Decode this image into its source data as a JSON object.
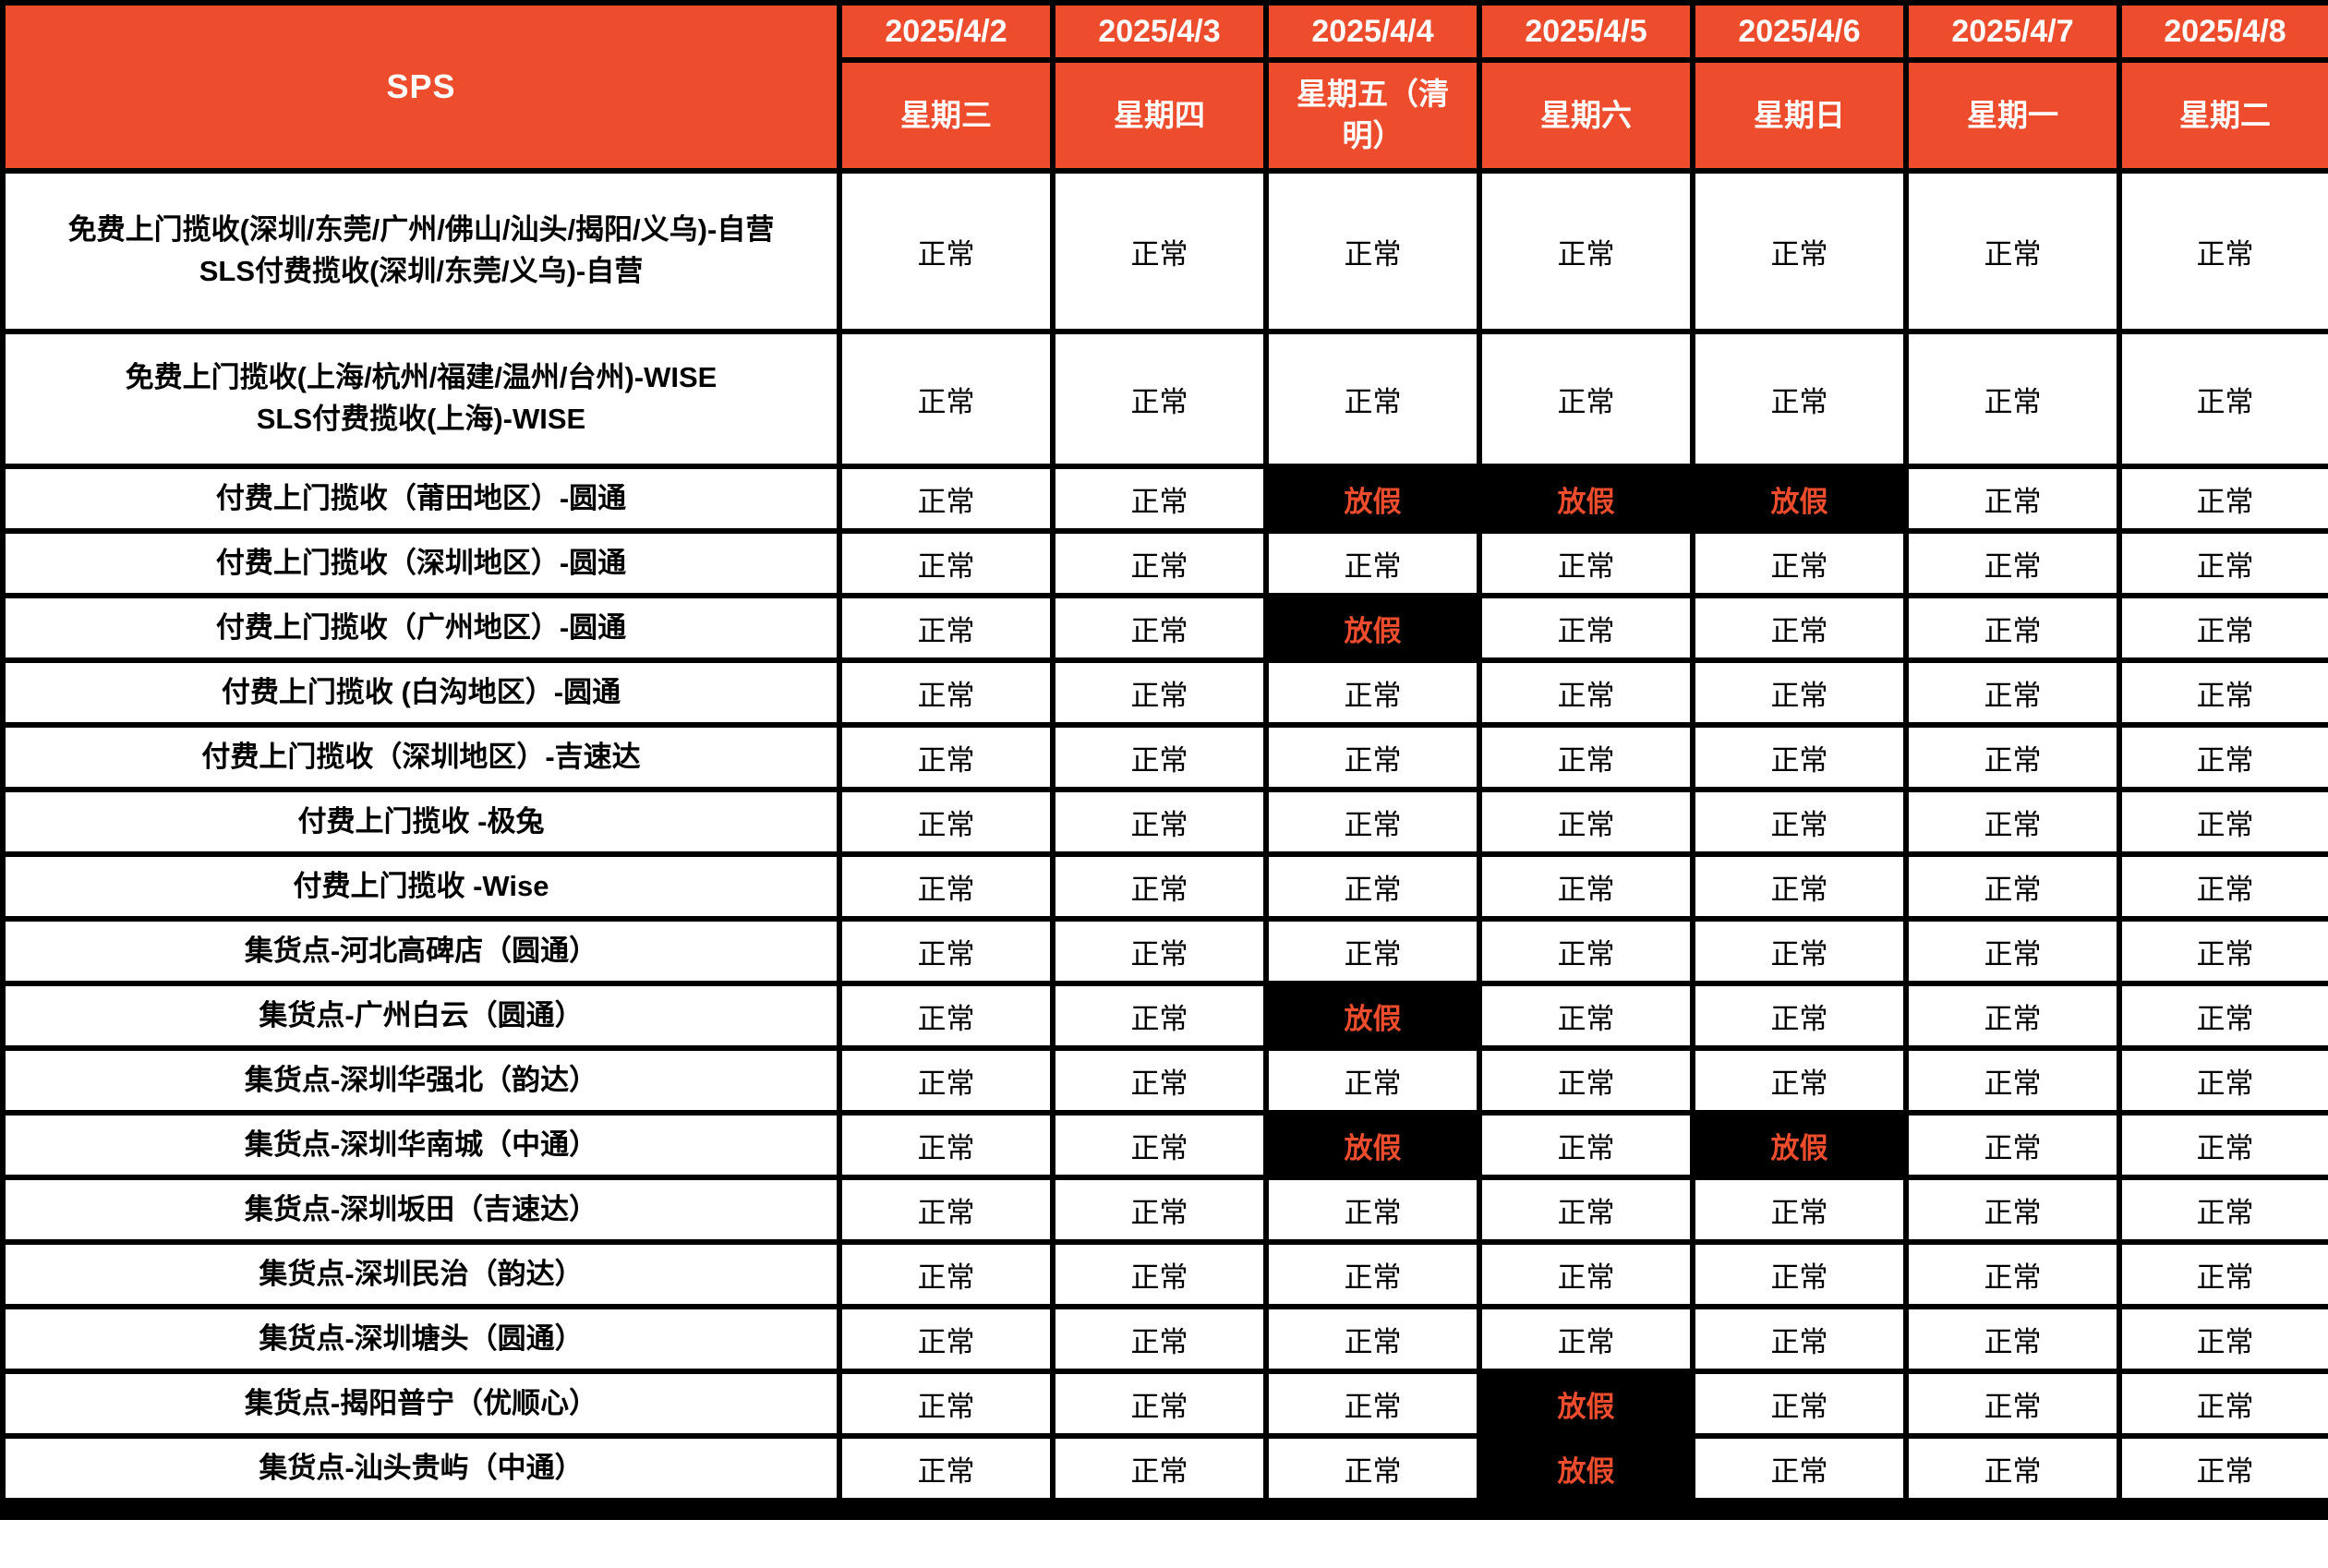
{
  "colors": {
    "accent": "#EE4D2D",
    "grid": "#000000",
    "cell_bg": "#FFFFFF",
    "header_text": "#FFFFFF",
    "body_text": "#000000",
    "holiday_bg": "#000000",
    "holiday_text": "#EE4D2D"
  },
  "table": {
    "corner_label": "SPS",
    "normal_label": "正常",
    "holiday_label": "放假",
    "columns": [
      {
        "date": "2025/4/2",
        "weekday": "星期三"
      },
      {
        "date": "2025/4/3",
        "weekday": "星期四"
      },
      {
        "date": "2025/4/4",
        "weekday": "星期五（清明）"
      },
      {
        "date": "2025/4/5",
        "weekday": "星期六"
      },
      {
        "date": "2025/4/6",
        "weekday": "星期日"
      },
      {
        "date": "2025/4/7",
        "weekday": "星期一"
      },
      {
        "date": "2025/4/8",
        "weekday": "星期二"
      }
    ],
    "rows": [
      {
        "service": "免费上门揽收(深圳/东莞/广州/佛山/汕头/揭阳/义乌)-自营\nSLS付费揽收(深圳/东莞/义乌)-自营",
        "statuses": [
          "正常",
          "正常",
          "正常",
          "正常",
          "正常",
          "正常",
          "正常"
        ]
      },
      {
        "service": "免费上门揽收(上海/杭州/福建/温州/台州)-WISE\nSLS付费揽收(上海)-WISE",
        "statuses": [
          "正常",
          "正常",
          "正常",
          "正常",
          "正常",
          "正常",
          "正常"
        ]
      },
      {
        "service": "付费上门揽收（莆田地区）-圆通",
        "statuses": [
          "正常",
          "正常",
          "放假",
          "放假",
          "放假",
          "正常",
          "正常"
        ]
      },
      {
        "service": "付费上门揽收（深圳地区）-圆通",
        "statuses": [
          "正常",
          "正常",
          "正常",
          "正常",
          "正常",
          "正常",
          "正常"
        ]
      },
      {
        "service": "付费上门揽收（广州地区）-圆通",
        "statuses": [
          "正常",
          "正常",
          "放假",
          "正常",
          "正常",
          "正常",
          "正常"
        ]
      },
      {
        "service": "付费上门揽收 (白沟地区）-圆通",
        "statuses": [
          "正常",
          "正常",
          "正常",
          "正常",
          "正常",
          "正常",
          "正常"
        ]
      },
      {
        "service": "付费上门揽收（深圳地区）-吉速达",
        "statuses": [
          "正常",
          "正常",
          "正常",
          "正常",
          "正常",
          "正常",
          "正常"
        ]
      },
      {
        "service": "付费上门揽收 -极兔",
        "statuses": [
          "正常",
          "正常",
          "正常",
          "正常",
          "正常",
          "正常",
          "正常"
        ]
      },
      {
        "service": "付费上门揽收 -Wise",
        "statuses": [
          "正常",
          "正常",
          "正常",
          "正常",
          "正常",
          "正常",
          "正常"
        ]
      },
      {
        "service": "集货点-河北高碑店（圆通）",
        "statuses": [
          "正常",
          "正常",
          "正常",
          "正常",
          "正常",
          "正常",
          "正常"
        ]
      },
      {
        "service": "集货点-广州白云（圆通）",
        "statuses": [
          "正常",
          "正常",
          "放假",
          "正常",
          "正常",
          "正常",
          "正常"
        ]
      },
      {
        "service": "集货点-深圳华强北（韵达）",
        "statuses": [
          "正常",
          "正常",
          "正常",
          "正常",
          "正常",
          "正常",
          "正常"
        ]
      },
      {
        "service": "集货点-深圳华南城（中通）",
        "statuses": [
          "正常",
          "正常",
          "放假",
          "正常",
          "放假",
          "正常",
          "正常"
        ]
      },
      {
        "service": "集货点-深圳坂田（吉速达）",
        "statuses": [
          "正常",
          "正常",
          "正常",
          "正常",
          "正常",
          "正常",
          "正常"
        ]
      },
      {
        "service": "集货点-深圳民治（韵达）",
        "statuses": [
          "正常",
          "正常",
          "正常",
          "正常",
          "正常",
          "正常",
          "正常"
        ]
      },
      {
        "service": "集货点-深圳塘头（圆通）",
        "statuses": [
          "正常",
          "正常",
          "正常",
          "正常",
          "正常",
          "正常",
          "正常"
        ]
      },
      {
        "service": "集货点-揭阳普宁（优顺心）",
        "statuses": [
          "正常",
          "正常",
          "正常",
          "放假",
          "正常",
          "正常",
          "正常"
        ]
      },
      {
        "service": "集货点-汕头贵屿（中通）",
        "statuses": [
          "正常",
          "正常",
          "正常",
          "放假",
          "正常",
          "正常",
          "正常"
        ]
      }
    ]
  }
}
